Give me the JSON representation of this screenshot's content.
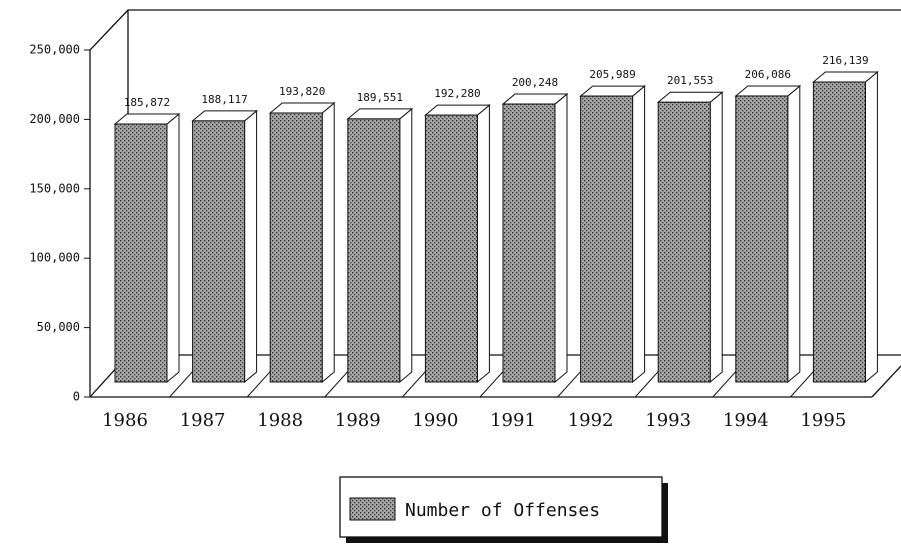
{
  "chart_data": {
    "type": "bar",
    "categories": [
      "1986",
      "1987",
      "1988",
      "1989",
      "1990",
      "1991",
      "1992",
      "1993",
      "1994",
      "1995"
    ],
    "series": [
      {
        "name": "Number of Offenses",
        "color": "#a8a8a8",
        "values": [
          185872,
          188117,
          193820,
          189551,
          192280,
          200248,
          205989,
          201553,
          206086,
          216139
        ],
        "value_labels": [
          "185,872",
          "188,117",
          "193,820",
          "189,551",
          "192,280",
          "200,248",
          "205,989",
          "201,553",
          "206,086",
          "216,139"
        ]
      }
    ],
    "ylim": [
      0,
      250000
    ],
    "yticks": [
      {
        "value": 0,
        "label": "0"
      },
      {
        "value": 50000,
        "label": "50,000"
      },
      {
        "value": 100000,
        "label": "100,000"
      },
      {
        "value": 150000,
        "label": "150,000"
      },
      {
        "value": 200000,
        "label": "200,000"
      },
      {
        "value": 250000,
        "label": "250,000"
      }
    ],
    "legend": "bottom"
  }
}
